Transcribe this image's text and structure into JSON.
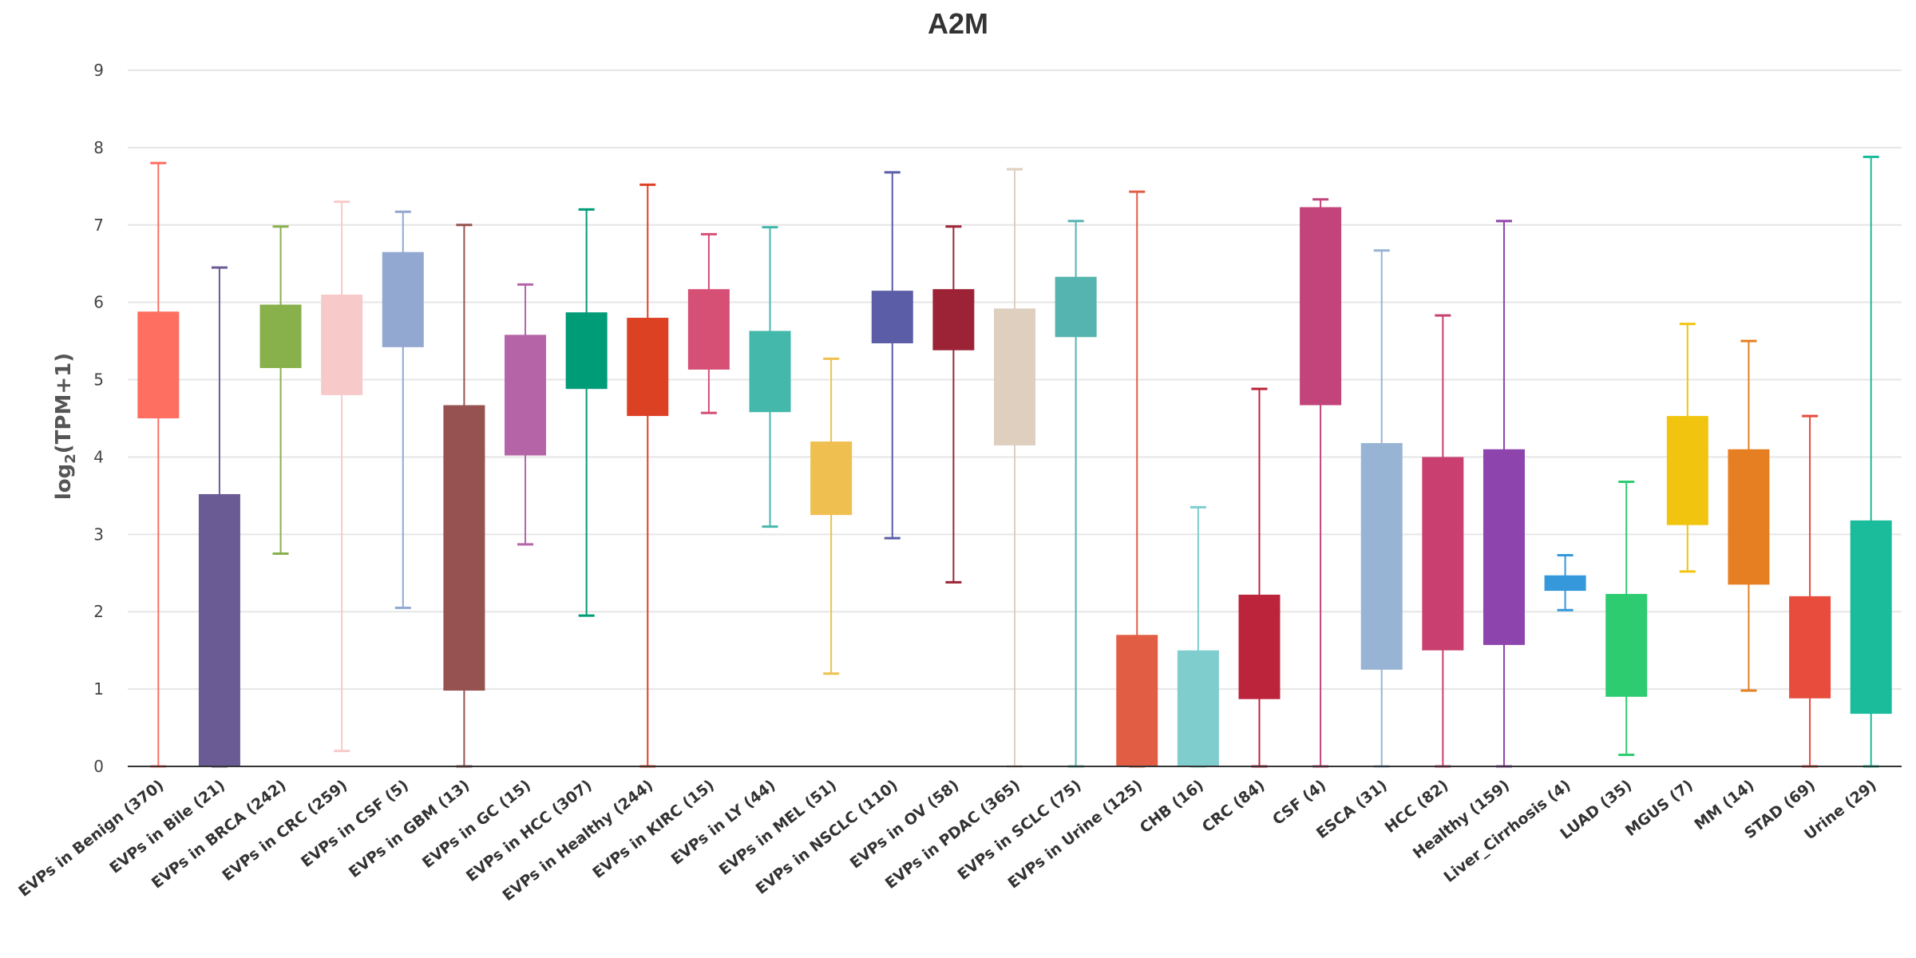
{
  "chart_data": {
    "type": "boxplot",
    "title": "A2M",
    "xlabel": "",
    "ylabel": "log2(TPM+1)",
    "ylabel_parts": {
      "pre": "log",
      "sub": "2",
      "post": "(TPM+1)"
    },
    "ylim": [
      0,
      9
    ],
    "yticks": [
      "0",
      "1",
      "2",
      "3",
      "4",
      "5",
      "6",
      "7",
      "8",
      "9"
    ],
    "grid": true,
    "categories": [
      "EVPs in Benign (370)",
      "EVPs in Bile (21)",
      "EVPs in BRCA (242)",
      "EVPs in CRC (259)",
      "EVPs in CSF (5)",
      "EVPs in GBM (13)",
      "EVPs in GC (15)",
      "EVPs in HCC (307)",
      "EVPs in Healthy (244)",
      "EVPs in KIRC (15)",
      "EVPs in LY (44)",
      "EVPs in MEL (51)",
      "EVPs in NSCLC (110)",
      "EVPs in OV (58)",
      "EVPs in PDAC (365)",
      "EVPs in SCLC (75)",
      "EVPs in Urine (125)",
      "CHB (16)",
      "CRC (84)",
      "CSF (4)",
      "ESCA (31)",
      "HCC (82)",
      "Healthy (159)",
      "Liver_Cirrhosis (4)",
      "LUAD (35)",
      "MGUS (7)",
      "MM (14)",
      "STAD (69)",
      "Urine (29)"
    ],
    "boxes": [
      {
        "min": 0.0,
        "q1": 4.5,
        "q3": 5.88,
        "max": 7.8,
        "color": "#ff6f61"
      },
      {
        "min": 0.0,
        "q1": 0.0,
        "q3": 3.52,
        "max": 6.45,
        "color": "#6b5b95"
      },
      {
        "min": 2.75,
        "q1": 5.15,
        "q3": 5.97,
        "max": 6.98,
        "color": "#88b04b"
      },
      {
        "min": 0.2,
        "q1": 4.8,
        "q3": 6.1,
        "max": 7.3,
        "color": "#f7cac9"
      },
      {
        "min": 2.05,
        "q1": 5.42,
        "q3": 6.65,
        "max": 7.17,
        "color": "#92a8d1"
      },
      {
        "min": 0.0,
        "q1": 0.98,
        "q3": 4.67,
        "max": 7.0,
        "color": "#955251"
      },
      {
        "min": 2.87,
        "q1": 4.02,
        "q3": 5.58,
        "max": 6.23,
        "color": "#b565a7"
      },
      {
        "min": 1.95,
        "q1": 4.88,
        "q3": 5.87,
        "max": 7.2,
        "color": "#009b77"
      },
      {
        "min": 0.0,
        "q1": 4.53,
        "q3": 5.8,
        "max": 7.52,
        "color": "#dd4124"
      },
      {
        "min": 4.57,
        "q1": 5.13,
        "q3": 6.17,
        "max": 6.88,
        "color": "#d65076"
      },
      {
        "min": 3.1,
        "q1": 4.58,
        "q3": 5.63,
        "max": 6.97,
        "color": "#45b8ac"
      },
      {
        "min": 1.2,
        "q1": 3.25,
        "q3": 4.2,
        "max": 5.27,
        "color": "#efc050"
      },
      {
        "min": 2.95,
        "q1": 5.47,
        "q3": 6.15,
        "max": 7.68,
        "color": "#5b5ea6"
      },
      {
        "min": 2.38,
        "q1": 5.38,
        "q3": 6.17,
        "max": 6.98,
        "color": "#9b2335"
      },
      {
        "min": 0.0,
        "q1": 4.15,
        "q3": 5.92,
        "max": 7.72,
        "color": "#dfcfbe"
      },
      {
        "min": 0.0,
        "q1": 5.55,
        "q3": 6.33,
        "max": 7.05,
        "color": "#55b4b0"
      },
      {
        "min": 0.0,
        "q1": 0.0,
        "q3": 1.7,
        "max": 7.43,
        "color": "#e15d44"
      },
      {
        "min": 0.0,
        "q1": 0.0,
        "q3": 1.5,
        "max": 3.35,
        "color": "#7fcdcd"
      },
      {
        "min": 0.0,
        "q1": 0.87,
        "q3": 2.22,
        "max": 4.88,
        "color": "#bc243c"
      },
      {
        "min": 0.0,
        "q1": 4.67,
        "q3": 7.23,
        "max": 7.33,
        "color": "#c3447a"
      },
      {
        "min": 0.0,
        "q1": 1.25,
        "q3": 4.18,
        "max": 6.67,
        "color": "#98b4d4"
      },
      {
        "min": 0.0,
        "q1": 1.5,
        "q3": 4.0,
        "max": 5.83,
        "color": "#c94070"
      },
      {
        "min": 0.0,
        "q1": 1.57,
        "q3": 4.1,
        "max": 7.05,
        "color": "#8e44ad"
      },
      {
        "min": 2.02,
        "q1": 2.27,
        "q3": 2.47,
        "max": 2.73,
        "color": "#3498db"
      },
      {
        "min": 0.15,
        "q1": 0.9,
        "q3": 2.23,
        "max": 3.68,
        "color": "#2ecc71"
      },
      {
        "min": 2.52,
        "q1": 3.12,
        "q3": 4.53,
        "max": 5.72,
        "color": "#f1c40f"
      },
      {
        "min": 0.98,
        "q1": 2.35,
        "q3": 4.1,
        "max": 5.5,
        "color": "#e67e22"
      },
      {
        "min": 0.0,
        "q1": 0.88,
        "q3": 2.2,
        "max": 4.53,
        "color": "#e74c3c"
      },
      {
        "min": 0.0,
        "q1": 0.68,
        "q3": 3.18,
        "max": 7.88,
        "color": "#1abc9c"
      }
    ]
  },
  "colors": {
    "grid": "#e6e6e6",
    "axis": "#333333",
    "text": "#444444"
  }
}
